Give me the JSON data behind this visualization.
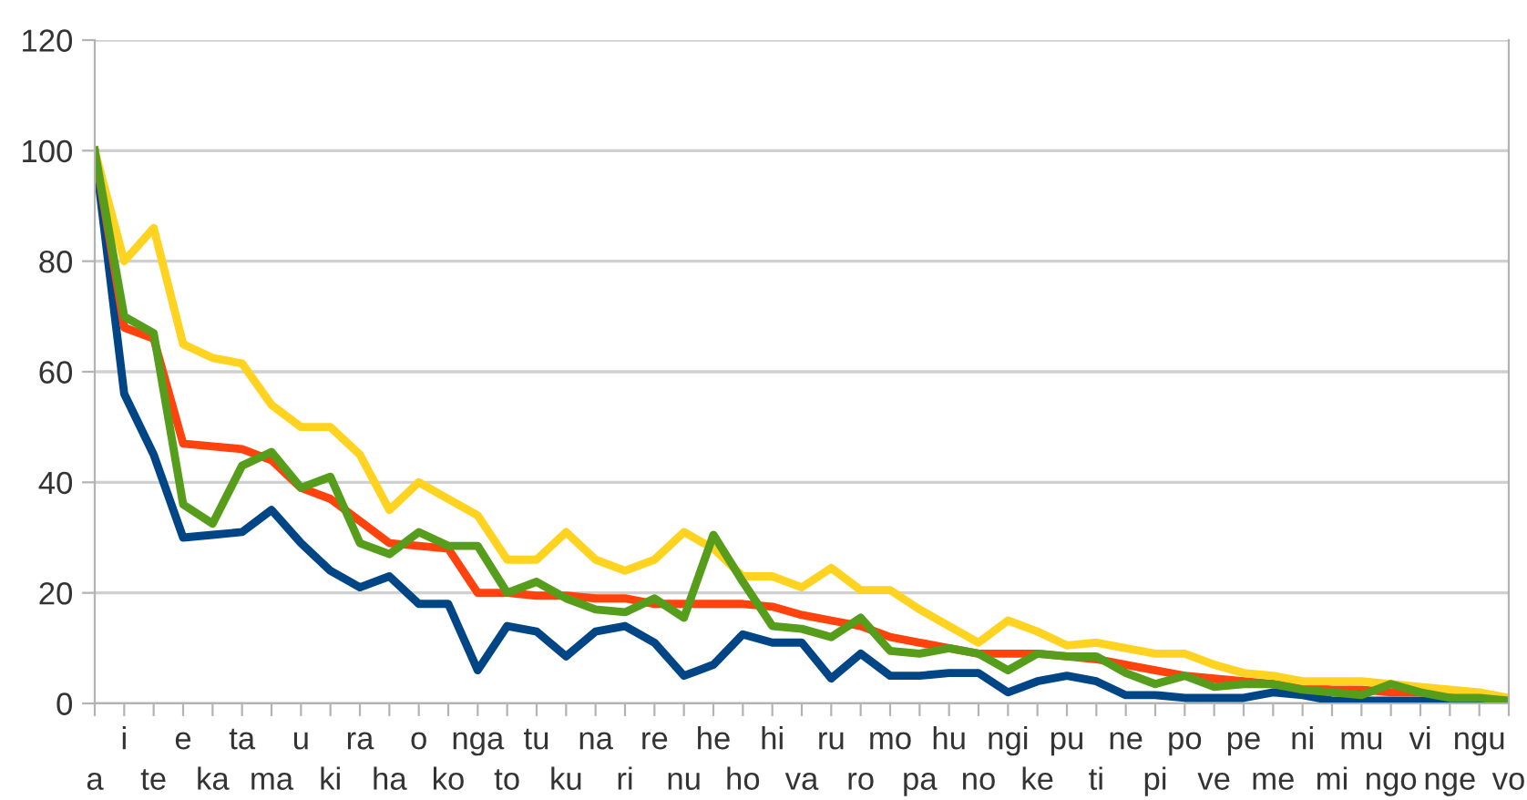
{
  "chart_data": {
    "type": "line",
    "categories": [
      "a",
      "i",
      "te",
      "e",
      "ka",
      "ta",
      "ma",
      "u",
      "ki",
      "ra",
      "ha",
      "o",
      "ko",
      "nga",
      "to",
      "tu",
      "ku",
      "na",
      "ri",
      "re",
      "nu",
      "he",
      "ho",
      "hi",
      "va",
      "ru",
      "ro",
      "mo",
      "pa",
      "hu",
      "no",
      "ngi",
      "ke",
      "pu",
      "ti",
      "ne",
      "pi",
      "po",
      "ve",
      "pe",
      "me",
      "ni",
      "mi",
      "mu",
      "ngo",
      "vi",
      "nge",
      "ngu",
      "vo"
    ],
    "series": [
      {
        "color": "#004586",
        "values": [
          100,
          56,
          45,
          30,
          30.5,
          31,
          35,
          29,
          24,
          21,
          23,
          18,
          18,
          6,
          14,
          13,
          8.5,
          13,
          14,
          11,
          5,
          7,
          12.5,
          11,
          11,
          4.5,
          9,
          5,
          5,
          5.5,
          5.5,
          2,
          4,
          5,
          4,
          1.5,
          1.5,
          1,
          1,
          1,
          2,
          1.5,
          0.5,
          0.5,
          0.5,
          0.5,
          0.5,
          0.5,
          0.3
        ]
      },
      {
        "color": "#ff420e",
        "values": [
          100,
          68,
          66,
          47,
          46.5,
          46,
          44,
          39,
          37,
          33,
          29,
          28.5,
          28,
          20,
          20,
          19.5,
          19.5,
          19,
          19,
          18,
          18,
          18,
          18,
          17.5,
          16,
          15,
          14,
          12,
          11,
          10,
          9,
          9,
          9,
          8.5,
          8,
          7,
          6,
          5,
          4.5,
          4,
          3.5,
          3,
          2.5,
          2.5,
          2,
          2,
          1.5,
          null,
          null
        ]
      },
      {
        "color": "#ffd320",
        "values": [
          100,
          80,
          86,
          65,
          62.5,
          61.5,
          54,
          50,
          50,
          45,
          35,
          40,
          37,
          34,
          26,
          26,
          31,
          26,
          24,
          26,
          31,
          28,
          23,
          23,
          21,
          24.5,
          20.5,
          20.5,
          17,
          14,
          11,
          15,
          13,
          10.5,
          11,
          10,
          9,
          9,
          7,
          5.5,
          5,
          4,
          4,
          4,
          3.5,
          3,
          2.5,
          2,
          1
        ]
      },
      {
        "color": "#579d1c",
        "values": [
          100,
          70,
          67,
          36,
          32.5,
          43,
          45.5,
          39,
          41,
          29,
          27,
          31,
          28.5,
          28.5,
          20,
          22,
          19,
          17,
          16.5,
          19,
          15.5,
          30.5,
          22,
          14,
          13.5,
          12,
          15.5,
          9.5,
          9,
          10,
          9,
          6,
          9,
          8.5,
          8.5,
          5.5,
          3.5,
          5,
          3,
          3.5,
          3.5,
          2.5,
          2,
          1.5,
          3.5,
          2,
          1,
          1,
          0.5
        ]
      }
    ],
    "ylim": [
      0,
      120
    ],
    "yticks": [
      0,
      20,
      40,
      60,
      80,
      100,
      120
    ],
    "grid": "y",
    "marker": "none",
    "line_style": "solid"
  }
}
